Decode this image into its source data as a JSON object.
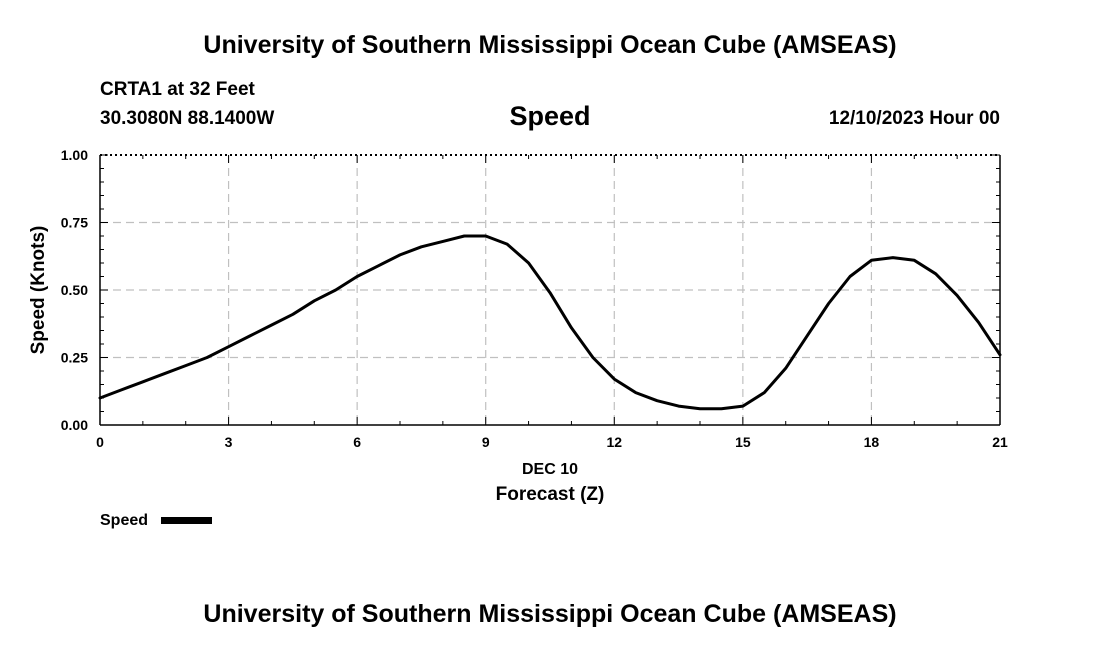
{
  "header": {
    "title": "University of Southern Mississippi Ocean Cube (AMSEAS)",
    "station": "CRTA1 at 32 Feet",
    "coords": "30.3080N  88.1400W",
    "variable": "Speed",
    "datetime": "12/10/2023 Hour 00"
  },
  "footer": {
    "title": "University of Southern Mississippi Ocean Cube (AMSEAS)"
  },
  "legend": {
    "label": "Speed"
  },
  "colors": {
    "line": "#000000",
    "grid": "#c0c0c0"
  },
  "chart_data": {
    "type": "line",
    "title": "Speed",
    "xlabel": "Forecast (Z)",
    "xlabel_date": "DEC 10",
    "ylabel": "Speed (Knots)",
    "xlim": [
      0,
      21
    ],
    "ylim": [
      0,
      1
    ],
    "xticks": [
      0,
      3,
      6,
      9,
      12,
      15,
      18,
      21
    ],
    "yticks": [
      0.0,
      0.25,
      0.5,
      0.75,
      1.0
    ],
    "ytick_labels": [
      "0.00",
      "0.25",
      "0.50",
      "0.75",
      "1.00"
    ],
    "grid": true,
    "series": [
      {
        "name": "Speed",
        "x": [
          0,
          0.5,
          1,
          1.5,
          2,
          2.5,
          3,
          3.5,
          4,
          4.5,
          5,
          5.5,
          6,
          6.5,
          7,
          7.5,
          8,
          8.5,
          9,
          9.5,
          10,
          10.5,
          11,
          11.5,
          12,
          12.5,
          13,
          13.5,
          14,
          14.5,
          15,
          15.5,
          16,
          16.5,
          17,
          17.5,
          18,
          18.5,
          19,
          19.5,
          20,
          20.5,
          21
        ],
        "y": [
          0.1,
          0.13,
          0.16,
          0.19,
          0.22,
          0.25,
          0.29,
          0.33,
          0.37,
          0.41,
          0.46,
          0.5,
          0.55,
          0.59,
          0.63,
          0.66,
          0.68,
          0.7,
          0.7,
          0.67,
          0.6,
          0.49,
          0.36,
          0.25,
          0.17,
          0.12,
          0.09,
          0.07,
          0.06,
          0.06,
          0.07,
          0.12,
          0.21,
          0.33,
          0.45,
          0.55,
          0.61,
          0.62,
          0.61,
          0.56,
          0.48,
          0.38,
          0.26
        ]
      }
    ]
  }
}
